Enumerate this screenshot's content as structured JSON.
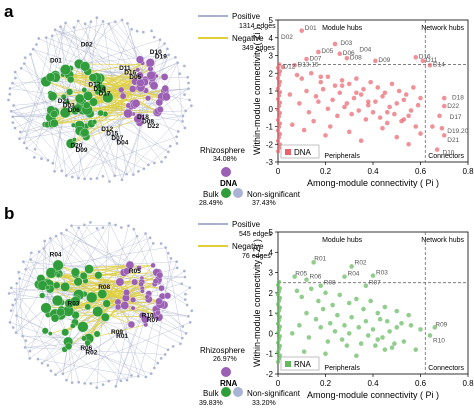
{
  "panels": [
    {
      "letter": "a",
      "legend": {
        "positive_label": "Positive",
        "positive_edges": "1314 edges",
        "negative_label": "Negative",
        "negative_edges": "349 edges",
        "rhizo_label": "Rhizosphere",
        "rhizo_pct": "34.08%",
        "dataset": "DNA",
        "bulk_label": "Bulk",
        "bulk_pct": "28.49%",
        "nonsig_label": "Non-significant",
        "nonsig_pct": "37.43%"
      },
      "network_labels": [
        "D04",
        "D22",
        "D06",
        "D17",
        "D05",
        "D01",
        "D02",
        "D07",
        "D08",
        "D03",
        "D14",
        "D16",
        "D19",
        "D09",
        "D15",
        "D18",
        "D21",
        "D13",
        "D11",
        "D10",
        "D20",
        "D12"
      ]
    },
    {
      "letter": "b",
      "legend": {
        "positive_label": "Positive",
        "positive_edges": "545 edges",
        "negative_label": "Negative",
        "negative_edges": "76 edges",
        "rhizo_label": "Rhizosphere",
        "rhizo_pct": "26.97%",
        "dataset": "RNA",
        "bulk_label": "Bulk",
        "bulk_pct": "39.83%",
        "nonsig_label": "Non-significant",
        "nonsig_pct": "33.20%"
      },
      "network_labels": [
        "R02",
        "R01",
        "R07",
        "R03",
        "R08",
        "R05",
        "R04",
        "R06",
        "R09",
        "R10"
      ]
    }
  ],
  "colors": {
    "rhizosphere": "#9b5fb5",
    "bulk": "#2f9e3a",
    "nonsig": "#a9b3d3",
    "positive_edge": "#aab2cf",
    "negative_edge": "#e0cf3a",
    "dna_points": "#e8636b",
    "rna_points": "#63b95c"
  },
  "chart_data": [
    {
      "type": "scatter",
      "xlabel": "Among-module connectivity ( Pi )",
      "ylabel": "Within-module connectivity ( Zi )",
      "xlim": [
        0,
        0.8
      ],
      "ylim": [
        -3,
        5
      ],
      "xticks": [
        "0",
        "0.2",
        "0.4",
        "0.6",
        "0.8"
      ],
      "yticks": [
        "-3",
        "-2",
        "-1",
        "0",
        "1",
        "2",
        "3",
        "4",
        "5"
      ],
      "thresholds": {
        "x": 0.62,
        "y": 2.5
      },
      "regions": [
        "Module hubs",
        "Network hubs",
        "Peripherals",
        "Connectors"
      ],
      "legend": "DNA",
      "labels": [
        {
          "text": "D01",
          "x": 0.1,
          "y": 4.6
        },
        {
          "text": "D02",
          "x": 0.0,
          "y": 4.1
        },
        {
          "text": "D03",
          "x": 0.25,
          "y": 3.75
        },
        {
          "text": "D04",
          "x": 0.33,
          "y": 3.4
        },
        {
          "text": "D05",
          "x": 0.17,
          "y": 3.3
        },
        {
          "text": "D06",
          "x": 0.26,
          "y": 3.2
        },
        {
          "text": "D07",
          "x": 0.12,
          "y": 2.9
        },
        {
          "text": "D08",
          "x": 0.29,
          "y": 2.95
        },
        {
          "text": "D09",
          "x": 0.41,
          "y": 2.8
        },
        {
          "text": "D11",
          "x": 0.61,
          "y": 2.8
        },
        {
          "text": "D14",
          "x": 0.64,
          "y": 2.55
        },
        {
          "text": "D13.15",
          "x": 0.07,
          "y": 2.55
        },
        {
          "text": "D12",
          "x": 0.01,
          "y": 2.45
        },
        {
          "text": "D18",
          "x": 0.72,
          "y": 0.7
        },
        {
          "text": "D22",
          "x": 0.7,
          "y": 0.2
        },
        {
          "text": "D17",
          "x": 0.71,
          "y": -0.4
        },
        {
          "text": "D19.20",
          "x": 0.7,
          "y": -1.2
        },
        {
          "text": "D21",
          "x": 0.7,
          "y": -1.7
        },
        {
          "text": "D10",
          "x": 0.68,
          "y": -2.4
        },
        {
          "text": "D16",
          "x": 0.58,
          "y": 3.0
        }
      ],
      "points_x": [
        0.1,
        0.24,
        0.17,
        0.26,
        0.12,
        0.29,
        0.41,
        0.58,
        0.61,
        0.64,
        0.07,
        0.02,
        0.7,
        0.68,
        0.69,
        0.7,
        0.7,
        0.67,
        0.08,
        0.1,
        0.14,
        0.18,
        0.21,
        0.24,
        0.27,
        0.3,
        0.33,
        0.36,
        0.39,
        0.42,
        0.45,
        0.48,
        0.51,
        0.54,
        0.57,
        0.6,
        0.12,
        0.16,
        0.19,
        0.23,
        0.26,
        0.29,
        0.32,
        0.35,
        0.38,
        0.41,
        0.44,
        0.47,
        0.5,
        0.53,
        0.56,
        0.59,
        0.05,
        0.09,
        0.13,
        0.17,
        0.21,
        0.25,
        0.28,
        0.31,
        0.34,
        0.37,
        0.4,
        0.43,
        0.46,
        0.49,
        0.52,
        0.55,
        0.58,
        0.06,
        0.11,
        0.15,
        0.2,
        0.22,
        0.3,
        0.35,
        0.44,
        0.5,
        0.55,
        0.6,
        0.65,
        0.18,
        0.27,
        0.33,
        0.38,
        0.46,
        0.53
      ],
      "points_y": [
        4.4,
        3.65,
        3.2,
        3.1,
        2.8,
        2.85,
        2.7,
        2.9,
        2.7,
        2.45,
        2.45,
        2.35,
        0.6,
        -0.4,
        -1.1,
        -1.5,
        0.15,
        -2.3,
        1.9,
        1.7,
        2.0,
        1.5,
        1.8,
        1.3,
        1.6,
        1.4,
        1.7,
        1.1,
        1.5,
        1.2,
        0.9,
        1.4,
        1.0,
        0.8,
        1.2,
        0.6,
        1.0,
        0.7,
        1.1,
        0.5,
        0.9,
        0.3,
        0.6,
        0.8,
        0.2,
        0.4,
        0.7,
        0.1,
        0.3,
        0.5,
        -0.1,
        0.2,
        0.8,
        0.3,
        -0.2,
        0.4,
        0.0,
        -0.4,
        0.1,
        -0.3,
        -0.1,
        -0.6,
        -0.2,
        -0.5,
        -0.8,
        -0.3,
        -0.7,
        -0.4,
        -1.0,
        -0.9,
        -1.2,
        -0.7,
        -1.5,
        -1.0,
        -1.3,
        -1.8,
        -1.1,
        -1.6,
        -2.0,
        -1.4,
        -1.0,
        1.8,
        1.3,
        0.9,
        0.4,
        -0.2,
        -0.6
      ]
    },
    {
      "type": "scatter",
      "xlabel": "Among-module connectivity ( Pi )",
      "ylabel": "Within-module connectivity ( Zi )",
      "xlim": [
        0,
        0.8
      ],
      "ylim": [
        -2,
        5
      ],
      "xticks": [
        "0",
        "0.2",
        "0.4",
        "0.6",
        "0.8"
      ],
      "yticks": [
        "-2",
        "-1",
        "0",
        "1",
        "2",
        "3",
        "4",
        "5"
      ],
      "thresholds": {
        "x": 0.62,
        "y": 2.5
      },
      "regions": [
        "Module hubs",
        "Network hubs",
        "Peripherals",
        "Connectors"
      ],
      "legend": "RNA",
      "labels": [
        {
          "text": "R01",
          "x": 0.14,
          "y": 3.75
        },
        {
          "text": "R02",
          "x": 0.31,
          "y": 3.55
        },
        {
          "text": "R03",
          "x": 0.4,
          "y": 3.05
        },
        {
          "text": "R04",
          "x": 0.28,
          "y": 3.0
        },
        {
          "text": "R05",
          "x": 0.06,
          "y": 3.0
        },
        {
          "text": "R06",
          "x": 0.12,
          "y": 2.85
        },
        {
          "text": "R07",
          "x": 0.37,
          "y": 2.55
        },
        {
          "text": "R08",
          "x": 0.18,
          "y": 2.55
        },
        {
          "text": "R09",
          "x": 0.65,
          "y": 0.5
        },
        {
          "text": "R10",
          "x": 0.64,
          "y": -0.3
        }
      ],
      "points_x": [
        0.15,
        0.31,
        0.4,
        0.28,
        0.07,
        0.12,
        0.37,
        0.18,
        0.66,
        0.64,
        0.08,
        0.1,
        0.14,
        0.17,
        0.2,
        0.23,
        0.26,
        0.3,
        0.33,
        0.36,
        0.39,
        0.42,
        0.45,
        0.5,
        0.55,
        0.12,
        0.16,
        0.19,
        0.22,
        0.25,
        0.28,
        0.31,
        0.34,
        0.37,
        0.4,
        0.43,
        0.47,
        0.52,
        0.06,
        0.09,
        0.13,
        0.18,
        0.21,
        0.24,
        0.27,
        0.3,
        0.35,
        0.38,
        0.41,
        0.44,
        0.46,
        0.48,
        0.5,
        0.53,
        0.56,
        0.58,
        0.6,
        0.11,
        0.2,
        0.29,
        0.33,
        0.42,
        0.45,
        0.49
      ],
      "points_y": [
        3.5,
        3.3,
        2.85,
        2.8,
        2.8,
        2.65,
        2.35,
        2.35,
        0.3,
        -0.1,
        2.1,
        1.8,
        2.2,
        1.6,
        2.0,
        1.4,
        1.9,
        1.5,
        1.7,
        1.2,
        1.6,
        1.0,
        1.3,
        1.1,
        0.9,
        1.0,
        0.7,
        1.2,
        0.5,
        0.9,
        0.4,
        0.8,
        0.3,
        0.6,
        0.2,
        0.7,
        0.1,
        0.5,
        0.0,
        0.4,
        -0.2,
        0.3,
        -0.4,
        0.1,
        -0.3,
        0.0,
        -0.5,
        -0.1,
        -0.6,
        -0.2,
        0.6,
        -0.7,
        0.3,
        -0.4,
        0.4,
        -0.8,
        0.2,
        -0.9,
        -1.0,
        -0.6,
        -1.1,
        -0.3,
        -0.8,
        -0.5
      ]
    }
  ]
}
